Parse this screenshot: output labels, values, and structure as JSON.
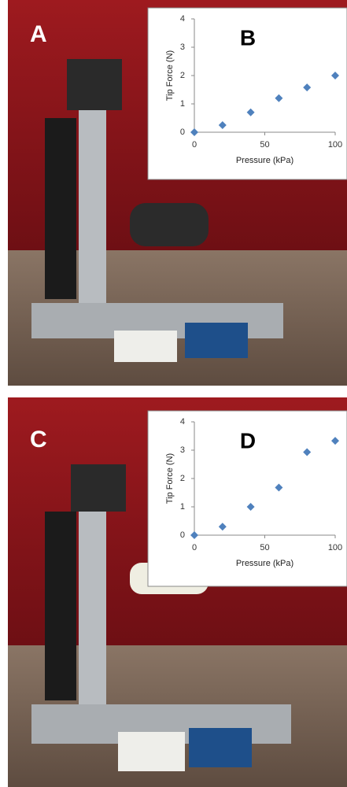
{
  "photo_labels": [
    "A",
    "C"
  ],
  "chart_data": [
    {
      "type": "scatter",
      "title": "B",
      "x_label": "Pressure (kPa)",
      "y_label": "Tip Force (N)",
      "x": [
        0,
        20,
        40,
        60,
        80,
        100
      ],
      "values": [
        0,
        0.25,
        0.7,
        1.2,
        1.58,
        2.0
      ],
      "color": "#4f81bd",
      "xlim": [
        0,
        100
      ],
      "xticks": [
        0,
        50,
        100
      ],
      "ylim": [
        0,
        4
      ],
      "yticks": [
        0,
        1,
        2,
        3,
        4
      ],
      "grid": false
    },
    {
      "type": "scatter",
      "title": "D",
      "x_label": "Pressure (kPa)",
      "y_label": "Tip Force (N)",
      "x": [
        0,
        20,
        40,
        60,
        80,
        100
      ],
      "values": [
        0,
        0.3,
        1.0,
        1.68,
        2.93,
        3.33
      ],
      "color": "#4f81bd",
      "xlim": [
        0,
        100
      ],
      "xticks": [
        0,
        50,
        100
      ],
      "ylim": [
        0,
        4
      ],
      "yticks": [
        0,
        1,
        2,
        3,
        4
      ],
      "grid": false
    }
  ]
}
